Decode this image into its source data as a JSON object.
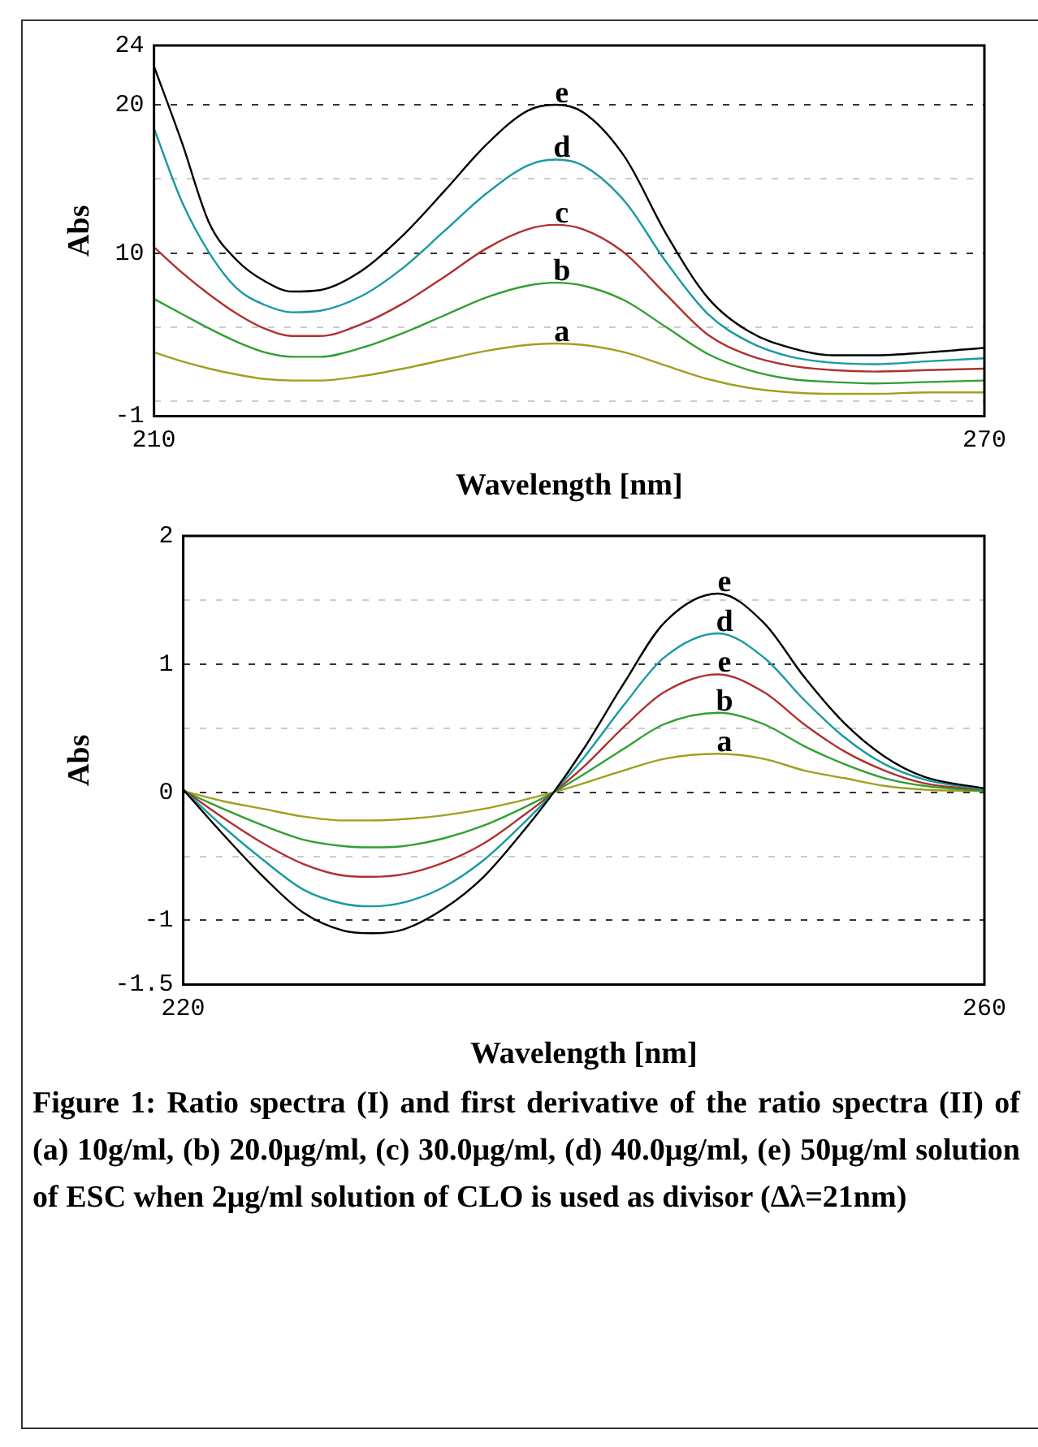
{
  "chart_data": [
    {
      "type": "line",
      "xlabel": "Wavelength [nm]",
      "ylabel": "Abs",
      "xlim": [
        210,
        270
      ],
      "ylim": [
        -1,
        24
      ],
      "xticks": [
        210,
        270
      ],
      "yticks": [
        24,
        20,
        {
          "value": 15,
          "label": null
        },
        10,
        {
          "value": 5,
          "label": null
        },
        {
          "value": 0,
          "label": null
        },
        -1
      ],
      "grid": "y",
      "marker": "none",
      "x": [
        210,
        212,
        214,
        216,
        218,
        220,
        222,
        225,
        228,
        231,
        234,
        237,
        239,
        241,
        244,
        247,
        250,
        253,
        256,
        259,
        262,
        266,
        270
      ],
      "series": [
        {
          "name": "e",
          "color": "#000000",
          "values": [
            22.6,
            17.5,
            12,
            9.5,
            8.1,
            7.4,
            7.5,
            8.8,
            11.2,
            14.2,
            17.3,
            19.6,
            20,
            19.5,
            16.5,
            11.3,
            7,
            4.7,
            3.6,
            3.1,
            3.1,
            3.3,
            3.6
          ]
        },
        {
          "name": "d",
          "color": "#1a9aa0",
          "values": [
            18.4,
            13.5,
            10,
            7.6,
            6.5,
            6,
            6.1,
            7.1,
            9,
            11.5,
            14,
            15.9,
            16.3,
            15.9,
            13.5,
            9.4,
            5.9,
            4,
            3,
            2.6,
            2.5,
            2.7,
            2.9
          ]
        },
        {
          "name": "c",
          "color": "#b03030",
          "values": [
            10.4,
            8.7,
            7.2,
            5.9,
            4.9,
            4.4,
            4.4,
            5.2,
            6.6,
            8.4,
            10.3,
            11.6,
            11.9,
            11.6,
            10,
            7.2,
            4.5,
            3.1,
            2.4,
            2.1,
            2,
            2.1,
            2.2
          ]
        },
        {
          "name": "b",
          "color": "#30a030",
          "values": [
            6.9,
            5.9,
            4.9,
            4,
            3.3,
            3,
            3,
            3.6,
            4.6,
            5.8,
            7,
            7.8,
            8,
            7.8,
            6.8,
            5,
            3.2,
            2.1,
            1.5,
            1.3,
            1.2,
            1.3,
            1.4
          ]
        },
        {
          "name": "a",
          "color": "#a0a020",
          "values": [
            3.3,
            2.7,
            2.2,
            1.8,
            1.5,
            1.4,
            1.4,
            1.7,
            2.2,
            2.8,
            3.4,
            3.8,
            3.9,
            3.8,
            3.3,
            2.4,
            1.5,
            0.9,
            0.6,
            0.5,
            0.5,
            0.6,
            0.6
          ]
        }
      ]
    },
    {
      "type": "line",
      "xlabel": "Wavelength [nm]",
      "ylabel": "Abs",
      "xlim": [
        220,
        260
      ],
      "ylim": [
        -1.5,
        2
      ],
      "xticks": [
        220,
        260
      ],
      "yticks": [
        2,
        {
          "value": 1.5,
          "label": null
        },
        1,
        {
          "value": 0.5,
          "label": null
        },
        0,
        {
          "value": -0.5,
          "label": null
        },
        -1,
        -1.5
      ],
      "grid": "y",
      "marker": "none",
      "x": [
        220,
        222,
        224,
        226,
        228,
        229.4,
        231,
        233,
        235,
        237,
        238.5,
        240,
        242,
        244,
        246.7,
        249,
        251,
        253,
        255,
        257,
        260
      ],
      "series": [
        {
          "name": "e",
          "color": "#000000",
          "values": [
            0.02,
            -0.33,
            -0.66,
            -0.94,
            -1.08,
            -1.1,
            -1.07,
            -0.91,
            -0.66,
            -0.3,
            0,
            0.34,
            0.85,
            1.32,
            1.55,
            1.32,
            0.9,
            0.54,
            0.28,
            0.12,
            0.03
          ]
        },
        {
          "name": "d",
          "color": "#1a9aa0",
          "values": [
            0.02,
            -0.27,
            -0.53,
            -0.76,
            -0.87,
            -0.89,
            -0.86,
            -0.74,
            -0.53,
            -0.24,
            0,
            0.27,
            0.68,
            1.05,
            1.24,
            1.05,
            0.72,
            0.43,
            0.22,
            0.1,
            0.02
          ]
        },
        {
          "name": "e",
          "color": "#b03030",
          "values": [
            0.02,
            -0.2,
            -0.4,
            -0.56,
            -0.65,
            -0.66,
            -0.64,
            -0.55,
            -0.4,
            -0.18,
            0,
            0.2,
            0.51,
            0.78,
            0.92,
            0.78,
            0.53,
            0.32,
            0.17,
            0.07,
            0.02
          ]
        },
        {
          "name": "b",
          "color": "#30a030",
          "values": [
            0.01,
            -0.13,
            -0.26,
            -0.37,
            -0.42,
            -0.43,
            -0.42,
            -0.36,
            -0.26,
            -0.12,
            0,
            0.14,
            0.34,
            0.53,
            0.62,
            0.53,
            0.36,
            0.22,
            0.11,
            0.05,
            0.01
          ]
        },
        {
          "name": "a",
          "color": "#a0a020",
          "values": [
            0.01,
            -0.07,
            -0.13,
            -0.19,
            -0.22,
            -0.22,
            -0.21,
            -0.18,
            -0.13,
            -0.06,
            0,
            0.07,
            0.17,
            0.26,
            0.3,
            0.26,
            0.17,
            0.11,
            0.05,
            0.02,
            0.01
          ]
        }
      ],
      "annotations": [
        "Figure 1: Ratio spectra (I) and first derivative of the ratio spectra (II) of (a) 10g/ml, (b) 20.0μg/ml, (c) 30.0μg/ml, (d) 40.0μg/ml, (e) 50μg/ml solution of ESC when 2μg/ml solution of CLO is used as divisor (Δλ=21nm)"
      ]
    }
  ]
}
